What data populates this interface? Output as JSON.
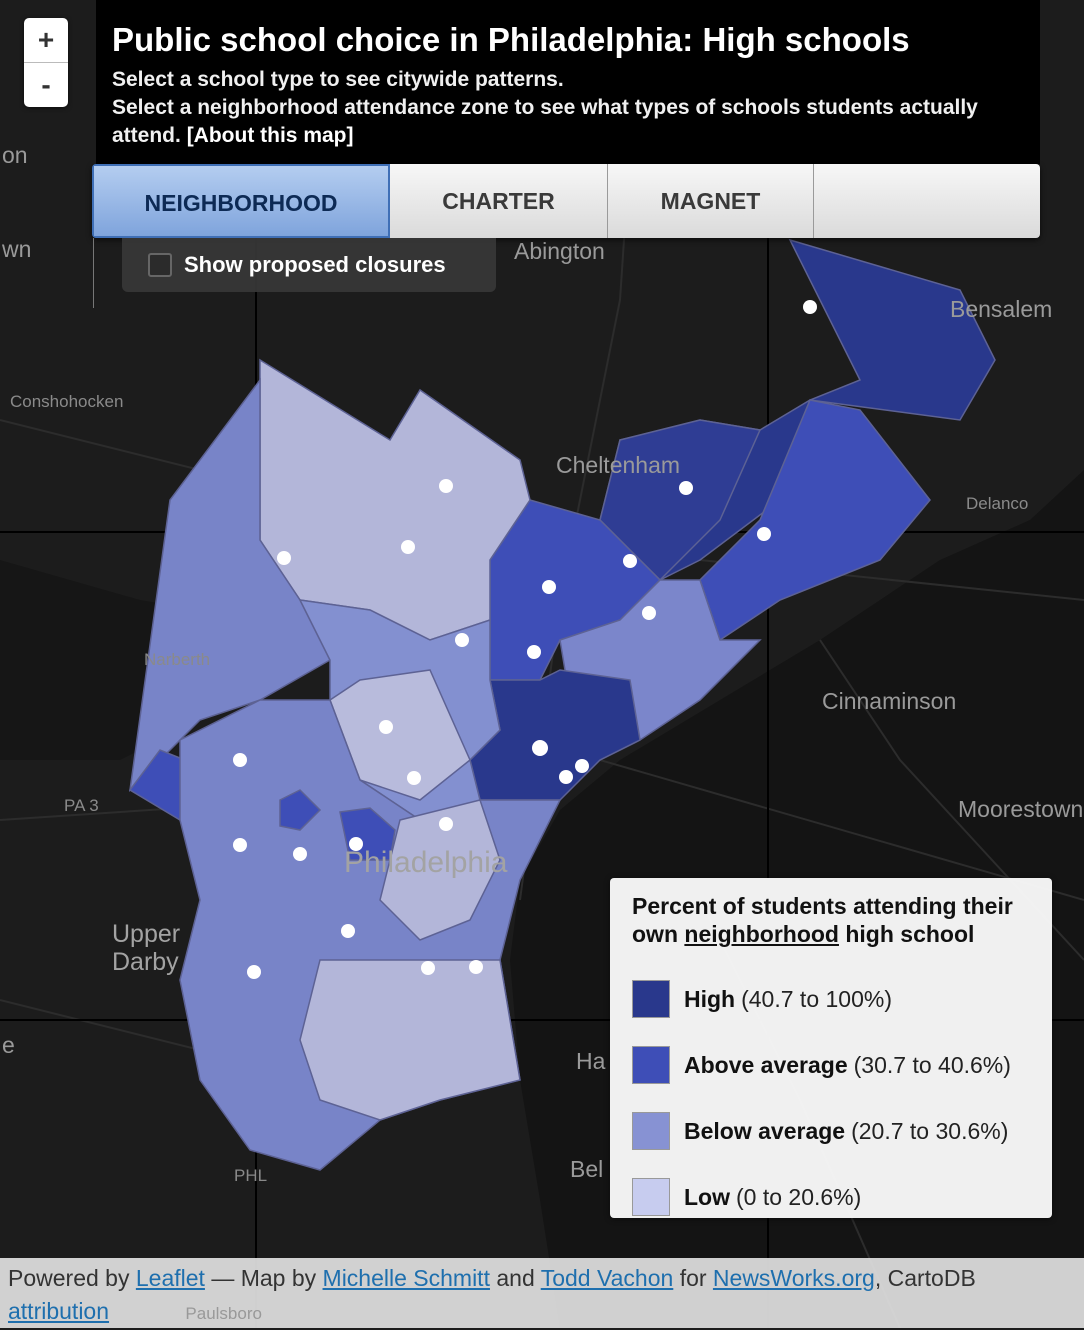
{
  "map": {
    "background": "#1c1c1c",
    "classes": {
      "high": "#29388c",
      "above": "#3e4eb7",
      "below": "#7884c8",
      "low": "#b3b6d9"
    },
    "places": {
      "abington": "Abington",
      "bensalem": "Bensalem",
      "cheltenham": "Cheltenham",
      "conshohocken": "Conshohocken",
      "delanco": "Delanco",
      "narberth": "Narberth",
      "cinnaminson": "Cinnaminson",
      "moorestown": "Moorestown",
      "philadelphia": "Philadelphia",
      "upper_darby_1": "Upper",
      "upper_darby_2": "Darby",
      "pa3": "PA 3",
      "phl": "PHL",
      "edge_left_1": "on",
      "edge_left_2": "wn",
      "edge_left_3": "e",
      "ha": "Ha",
      "bel": "Bel",
      "paulsboro": "Paulsboro"
    }
  },
  "zoom": {
    "in_label": "+",
    "out_label": "-"
  },
  "header": {
    "title": "Public school choice in Philadelphia: High schools",
    "line1": "Select a school type to see citywide patterns.",
    "line2": "Select a neighborhood attendance zone to see what types of schools students actually attend.",
    "about_link": "[About this map]"
  },
  "tabs": [
    {
      "label": "NEIGHBORHOOD",
      "active": true
    },
    {
      "label": "CHARTER",
      "active": false
    },
    {
      "label": "MAGNET",
      "active": false
    },
    {
      "label": "",
      "active": false
    }
  ],
  "closures": {
    "label": "Show proposed closures",
    "checked": false
  },
  "legend": {
    "title_pre": "Percent of students attending their own ",
    "title_underlined": "neighborhood",
    "title_post": " high school",
    "items": [
      {
        "name": "High",
        "range": "(40.7 to 100%)",
        "color": "#29388c"
      },
      {
        "name": "Above average",
        "range": "(30.7 to 40.6%)",
        "color": "#3e4eb7"
      },
      {
        "name": "Below average",
        "range": "(20.7 to 30.6%)",
        "color": "#8792d3"
      },
      {
        "name": "Low",
        "range": "(0 to 20.6%)",
        "color": "#c7ccef"
      }
    ]
  },
  "footer": {
    "powered": "Powered by",
    "leaflet": "Leaflet",
    "dash_map_by": "— Map by",
    "author1": "Michelle Schmitt",
    "and": "and",
    "author2": "Todd Vachon",
    "for": "for",
    "site": "NewsWorks.org",
    "cartodb": ", CartoDB",
    "attribution": "attribution"
  }
}
